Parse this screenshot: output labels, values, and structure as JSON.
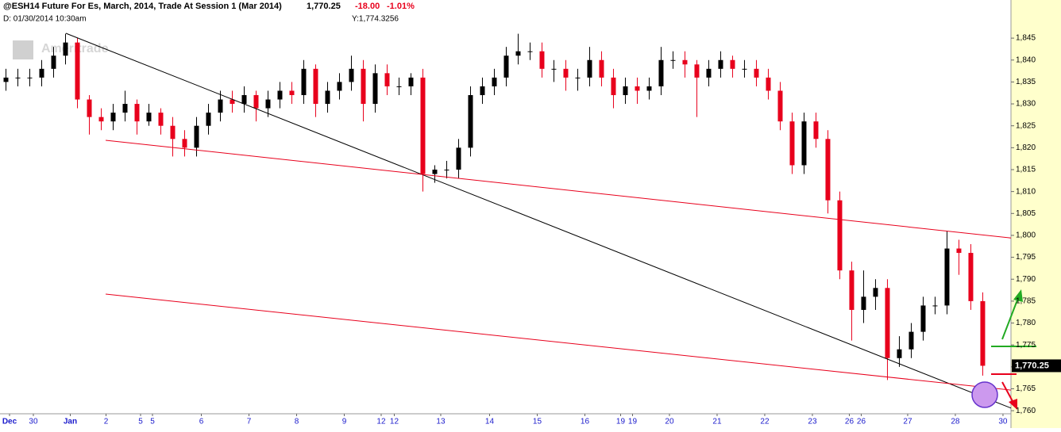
{
  "chart_data": {
    "type": "candlestick",
    "title": "@ESH14 Future For Es, March, 2014, Trade At Session 1 (Mar 2014)",
    "last": {
      "value": 1770.25,
      "label": "1,770.25"
    },
    "change": "-18.00",
    "change_pct": "-1.01%",
    "cursor_date": "D: 01/30/2014 10:30am",
    "cursor_value": "Y:1,774.3256",
    "watermark": "Ameritrade",
    "up_color": "#000000",
    "down_color": "#e8001c",
    "open": [
      1835,
      1836,
      1836,
      1836,
      1838,
      1841,
      1844,
      1831,
      1827,
      1826,
      1828,
      1830,
      1826,
      1828,
      1825,
      1822,
      1820,
      1825,
      1828,
      1831,
      1830,
      1832,
      1829,
      1831,
      1833,
      1832,
      1838,
      1830,
      1833,
      1835,
      1838,
      1830,
      1837,
      1834,
      1834,
      1836,
      1814,
      1815,
      1815,
      1820,
      1832,
      1834,
      1836,
      1841,
      1842,
      1842,
      1838,
      1838,
      1836,
      1836,
      1840,
      1836,
      1832,
      1834,
      1833,
      1834,
      1840,
      1840,
      1839,
      1836,
      1838,
      1840,
      1838,
      1838,
      1836,
      1833,
      1826,
      1816,
      1826,
      1822,
      1808,
      1792,
      1783,
      1786,
      1788,
      1772,
      1774,
      1778,
      1784,
      1784,
      1797,
      1796,
      1785
    ],
    "high": [
      1838,
      1838,
      1838,
      1840,
      1843,
      1846,
      1845,
      1832,
      1829,
      1830,
      1833,
      1831,
      1830,
      1829,
      1827,
      1824,
      1827,
      1830,
      1833,
      1833,
      1834,
      1833,
      1833,
      1835,
      1835,
      1840,
      1839,
      1835,
      1837,
      1841,
      1840,
      1839,
      1839,
      1836,
      1837,
      1838,
      1816,
      1817,
      1822,
      1834,
      1836,
      1838,
      1843,
      1846,
      1844,
      1844,
      1840,
      1840,
      1838,
      1843,
      1842,
      1838,
      1836,
      1836,
      1836,
      1843,
      1842,
      1842,
      1840,
      1840,
      1842,
      1841,
      1840,
      1840,
      1838,
      1835,
      1828,
      1828,
      1828,
      1824,
      1810,
      1794,
      1792,
      1790,
      1790,
      1777,
      1780,
      1786,
      1786,
      1801,
      1799,
      1798,
      1787
    ],
    "low": [
      1833,
      1834,
      1834,
      1834,
      1836,
      1839,
      1829,
      1823,
      1824,
      1824,
      1826,
      1823,
      1825,
      1823,
      1818,
      1818,
      1818,
      1823,
      1826,
      1828,
      1828,
      1826,
      1827,
      1829,
      1830,
      1830,
      1827,
      1828,
      1831,
      1833,
      1826,
      1828,
      1832,
      1832,
      1832,
      1810,
      1812,
      1813,
      1813,
      1818,
      1830,
      1832,
      1834,
      1839,
      1840,
      1836,
      1835,
      1833,
      1833,
      1834,
      1834,
      1829,
      1830,
      1830,
      1831,
      1832,
      1838,
      1836,
      1827,
      1834,
      1836,
      1836,
      1836,
      1834,
      1831,
      1824,
      1814,
      1814,
      1820,
      1805,
      1790,
      1776,
      1780,
      1783,
      1767,
      1770,
      1772,
      1776,
      1782,
      1782,
      1791,
      1783,
      1768
    ],
    "close": [
      1836,
      1836,
      1836,
      1838,
      1841,
      1844,
      1831,
      1827,
      1826,
      1828,
      1830,
      1826,
      1828,
      1825,
      1822,
      1820,
      1825,
      1828,
      1831,
      1830,
      1832,
      1829,
      1831,
      1833,
      1832,
      1838,
      1830,
      1833,
      1835,
      1838,
      1830,
      1837,
      1834,
      1834,
      1836,
      1814,
      1815,
      1815,
      1820,
      1832,
      1834,
      1836,
      1841,
      1842,
      1842,
      1838,
      1838,
      1836,
      1836,
      1840,
      1836,
      1832,
      1834,
      1833,
      1834,
      1840,
      1840,
      1839,
      1836,
      1838,
      1840,
      1838,
      1838,
      1836,
      1833,
      1826,
      1816,
      1826,
      1822,
      1808,
      1792,
      1783,
      1786,
      1788,
      1772,
      1774,
      1778,
      1784,
      1784,
      1797,
      1796,
      1785,
      1770.25
    ],
    "xlim": [
      -0.5,
      84.37
    ],
    "ylim": [
      1759.3,
      1853.7
    ],
    "xticks": [
      {
        "value": 0.3,
        "label": "Dec"
      },
      {
        "value": 2.3,
        "label": "30"
      },
      {
        "value": 5.4,
        "label": "Jan"
      },
      {
        "value": 8.4,
        "label": "2"
      },
      {
        "value": 11.3,
        "label": "5"
      },
      {
        "value": 12.3,
        "label": "5"
      },
      {
        "value": 16.4,
        "label": "6"
      },
      {
        "value": 20.4,
        "label": "7"
      },
      {
        "value": 24.4,
        "label": "8"
      },
      {
        "value": 28.4,
        "label": "9"
      },
      {
        "value": 31.5,
        "label": "12"
      },
      {
        "value": 32.6,
        "label": "12"
      },
      {
        "value": 36.5,
        "label": "13"
      },
      {
        "value": 40.6,
        "label": "14"
      },
      {
        "value": 44.6,
        "label": "15"
      },
      {
        "value": 48.6,
        "label": "16"
      },
      {
        "value": 51.6,
        "label": "19"
      },
      {
        "value": 52.6,
        "label": "19"
      },
      {
        "value": 55.7,
        "label": "20"
      },
      {
        "value": 59.7,
        "label": "21"
      },
      {
        "value": 63.7,
        "label": "22"
      },
      {
        "value": 67.7,
        "label": "23"
      },
      {
        "value": 70.8,
        "label": "26"
      },
      {
        "value": 71.8,
        "label": "26"
      },
      {
        "value": 75.7,
        "label": "27"
      },
      {
        "value": 79.7,
        "label": "28"
      },
      {
        "value": 83.7,
        "label": "30"
      }
    ],
    "yticks": [
      {
        "value": 1760,
        "label": "1,760"
      },
      {
        "value": 1765,
        "label": "1,765"
      },
      {
        "value": 1770,
        "label": "1,770"
      },
      {
        "value": 1775,
        "label": "1,775"
      },
      {
        "value": 1780,
        "label": "1,780"
      },
      {
        "value": 1785,
        "label": "1,785"
      },
      {
        "value": 1790,
        "label": "1,790"
      },
      {
        "value": 1795,
        "label": "1,795"
      },
      {
        "value": 1800,
        "label": "1,800"
      },
      {
        "value": 1805,
        "label": "1,805"
      },
      {
        "value": 1810,
        "label": "1,810"
      },
      {
        "value": 1815,
        "label": "1,815"
      },
      {
        "value": 1820,
        "label": "1,820"
      },
      {
        "value": 1825,
        "label": "1,825"
      },
      {
        "value": 1830,
        "label": "1,830"
      },
      {
        "value": 1835,
        "label": "1,835"
      },
      {
        "value": 1840,
        "label": "1,840"
      },
      {
        "value": 1845,
        "label": "1,845"
      }
    ],
    "trendlines": [
      {
        "color": "#000000",
        "x": [
          5.03,
          84.37
        ],
        "y": [
          1846.1,
          1760.6
        ]
      },
      {
        "color": "#e8001c",
        "x": [
          8.37,
          84.37
        ],
        "y": [
          1821.7,
          1799.4
        ]
      },
      {
        "color": "#e8001c",
        "x": [
          8.37,
          84.37
        ],
        "y": [
          1786.6,
          1764.7
        ]
      }
    ]
  }
}
